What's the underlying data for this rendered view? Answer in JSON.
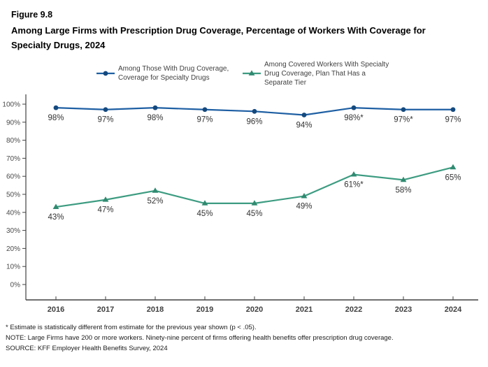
{
  "figure": {
    "number": "Figure 9.8",
    "title": "Among Large Firms with Prescription Drug Coverage, Percentage of Workers With Coverage for Specialty Drugs, 2024"
  },
  "chart_data": {
    "type": "line",
    "x": [
      "2016",
      "2017",
      "2018",
      "2019",
      "2020",
      "2021",
      "2022",
      "2023",
      "2024"
    ],
    "series": [
      {
        "name": "Among Those With Drug Coverage, Coverage for Specialty Drugs",
        "values": [
          98,
          97,
          98,
          97,
          96,
          94,
          98,
          97,
          97
        ],
        "point_labels": [
          "98%",
          "97%",
          "98%",
          "97%",
          "96%",
          "94%",
          "98%*",
          "97%*",
          "97%"
        ],
        "line_color": "#1E5FA3",
        "marker_color": "#14497E",
        "marker": "circle"
      },
      {
        "name": "Among Covered Workers With Specialty Drug Coverage, Plan That Has a Separate Tier",
        "values": [
          43,
          47,
          52,
          45,
          45,
          49,
          61,
          58,
          65
        ],
        "point_labels": [
          "43%",
          "47%",
          "52%",
          "45%",
          "45%",
          "49%",
          "61%*",
          "58%",
          "65%"
        ],
        "line_color": "#3D9C81",
        "marker_color": "#2F8A70",
        "marker": "triangle"
      }
    ],
    "title": "Among Large Firms with Prescription Drug Coverage, Percentage of Workers With Coverage for Specialty Drugs, 2024",
    "xlabel": "",
    "ylabel": "",
    "ylim": [
      0,
      100
    ],
    "ytick_step": 10,
    "ytick_suffix": "%",
    "grid": false,
    "legend_position": "top",
    "axis_color": "#404040",
    "tick_label_color": "#4a4a4a",
    "data_label_color": "#333333"
  },
  "footnotes": [
    "* Estimate is statistically different from estimate for the previous year shown (p < .05).",
    "NOTE: Large Firms have 200 or more workers. Ninety-nine percent of firms offering health benefits offer prescription drug coverage.",
    "SOURCE: KFF Employer Health Benefits Survey, 2024"
  ]
}
